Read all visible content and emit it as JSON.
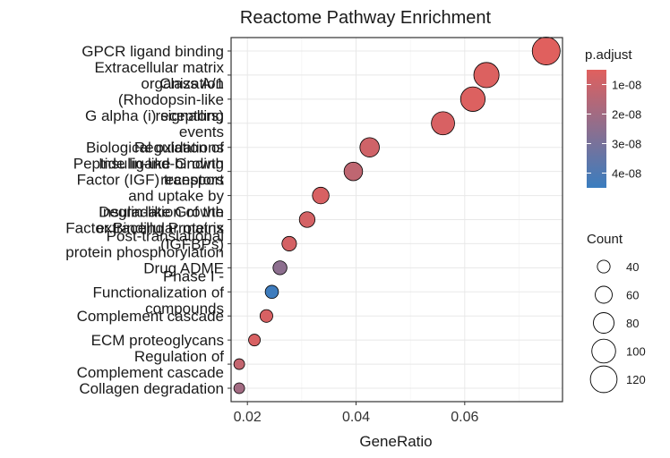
{
  "chart_data": {
    "type": "scatter",
    "title": "Reactome Pathway Enrichment",
    "xlabel": "GeneRatio",
    "ylabel": "",
    "xlim": [
      0.017,
      0.078
    ],
    "xticks": [
      0.02,
      0.04,
      0.06
    ],
    "xtick_labels": [
      "0.02",
      "0.04",
      "0.06"
    ],
    "grid": true,
    "points": [
      {
        "label": "GPCR ligand binding",
        "x": 0.075,
        "count": 129,
        "p_adjust": 5e-09
      },
      {
        "label": "Extracellular matrix organization",
        "x": 0.064,
        "count": 110,
        "p_adjust": 6e-09
      },
      {
        "label": "Class A/1 (Rhodopsin-like receptors)",
        "x": 0.0615,
        "count": 105,
        "p_adjust": 6e-09
      },
      {
        "label": "G alpha (i) signalling events",
        "x": 0.056,
        "count": 96,
        "p_adjust": 7e-09
      },
      {
        "label": "Biological oxidations",
        "x": 0.0425,
        "count": 73,
        "p_adjust": 9e-09
      },
      {
        "label": "Peptide ligand-binding receptors",
        "x": 0.0395,
        "count": 68,
        "p_adjust": 1.3e-08
      },
      {
        "label": "Regulation of Insulin-like Growth Factor (IGF) transport and uptake by Insulin-like Growth Factor Binding Proteins (IGFBPs)",
        "x": 0.0335,
        "count": 58,
        "p_adjust": 7e-09
      },
      {
        "label": "Degradation of the extracellular matrix",
        "x": 0.031,
        "count": 53,
        "p_adjust": 8e-09
      },
      {
        "label": "Post-translational protein phosphorylation",
        "x": 0.0277,
        "count": 48,
        "p_adjust": 8e-09
      },
      {
        "label": "Drug ADME",
        "x": 0.026,
        "count": 45,
        "p_adjust": 2.5e-08
      },
      {
        "label": "Phase I - Functionalization of compounds",
        "x": 0.0245,
        "count": 42,
        "p_adjust": 4.4e-08
      },
      {
        "label": "Complement cascade",
        "x": 0.0235,
        "count": 40,
        "p_adjust": 7e-09
      },
      {
        "label": "ECM proteoglycans",
        "x": 0.0213,
        "count": 36,
        "p_adjust": 7e-09
      },
      {
        "label": "Regulation of Complement cascade",
        "x": 0.0185,
        "count": 32,
        "p_adjust": 1.2e-08
      },
      {
        "label": "Collagen degradation",
        "x": 0.0185,
        "count": 32,
        "p_adjust": 2e-08
      }
    ],
    "color_legend": {
      "title": "p.adjust",
      "ticks": [
        1e-08,
        2e-08,
        3e-08,
        4e-08
      ],
      "tick_labels": [
        "1e-08",
        "2e-08",
        "3e-08",
        "4e-08"
      ],
      "range": [
        5e-09,
        4.5e-08
      ],
      "color_low": "#E0605E",
      "color_high": "#3A7DBF"
    },
    "size_legend": {
      "title": "Count",
      "values": [
        40,
        60,
        80,
        100,
        120
      ],
      "labels": [
        "40",
        "60",
        "80",
        "100",
        "120"
      ]
    }
  }
}
